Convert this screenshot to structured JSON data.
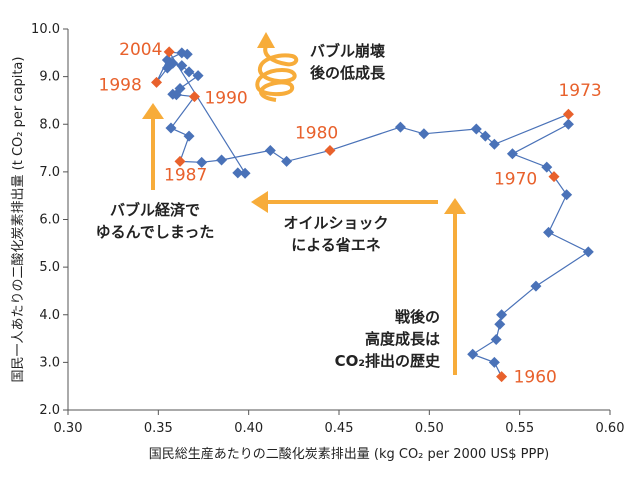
{
  "chart_data": {
    "type": "scatter",
    "xlabel": "国民総生産あたりの二酸化炭素排出量 (kg CO₂ per 2000 US$ PPP)",
    "ylabel": "国民一人あたりの二酸化炭素排出量 (t CO₂ per capita)",
    "xlim": [
      0.3,
      0.6
    ],
    "ylim": [
      2.0,
      10.0
    ],
    "x_ticks": [
      "0.30",
      "0.35",
      "0.40",
      "0.45",
      "0.50",
      "0.55",
      "0.60"
    ],
    "y_ticks": [
      "2.0",
      "3.0",
      "4.0",
      "5.0",
      "6.0",
      "7.0",
      "8.0",
      "9.0",
      "10.0"
    ],
    "grid": false,
    "colors": {
      "points": "#4a72b8",
      "highlight": "#e8612c",
      "arrows": "#f7ac3a"
    },
    "series": [
      {
        "points": [
          {
            "x": 0.54,
            "y": 2.7
          },
          {
            "x": 0.536,
            "y": 3.0
          },
          {
            "x": 0.524,
            "y": 3.17
          },
          {
            "x": 0.537,
            "y": 3.48
          },
          {
            "x": 0.539,
            "y": 3.8
          },
          {
            "x": 0.54,
            "y": 4.0
          },
          {
            "x": 0.559,
            "y": 4.6
          },
          {
            "x": 0.588,
            "y": 5.32
          },
          {
            "x": 0.566,
            "y": 5.73
          },
          {
            "x": 0.576,
            "y": 6.52
          },
          {
            "x": 0.569,
            "y": 6.9
          },
          {
            "x": 0.565,
            "y": 7.1
          },
          {
            "x": 0.546,
            "y": 7.38
          },
          {
            "x": 0.577,
            "y": 8.0
          },
          {
            "x": 0.577,
            "y": 8.21
          },
          {
            "x": 0.536,
            "y": 7.58
          },
          {
            "x": 0.531,
            "y": 7.75
          },
          {
            "x": 0.526,
            "y": 7.9
          },
          {
            "x": 0.497,
            "y": 7.8
          },
          {
            "x": 0.484,
            "y": 7.94
          },
          {
            "x": 0.445,
            "y": 7.45
          },
          {
            "x": 0.421,
            "y": 7.22
          },
          {
            "x": 0.412,
            "y": 7.45
          },
          {
            "x": 0.385,
            "y": 7.25
          },
          {
            "x": 0.374,
            "y": 7.2
          },
          {
            "x": 0.362,
            "y": 7.22
          },
          {
            "x": 0.367,
            "y": 7.75
          },
          {
            "x": 0.357,
            "y": 7.92
          },
          {
            "x": 0.37,
            "y": 8.58
          },
          {
            "x": 0.36,
            "y": 8.62
          },
          {
            "x": 0.358,
            "y": 8.63
          },
          {
            "x": 0.362,
            "y": 8.75
          },
          {
            "x": 0.372,
            "y": 9.02
          },
          {
            "x": 0.367,
            "y": 9.1
          },
          {
            "x": 0.363,
            "y": 9.23
          },
          {
            "x": 0.358,
            "y": 9.28
          },
          {
            "x": 0.355,
            "y": 9.18
          },
          {
            "x": 0.349,
            "y": 8.88
          },
          {
            "x": 0.355,
            "y": 9.35
          },
          {
            "x": 0.363,
            "y": 9.5
          },
          {
            "x": 0.366,
            "y": 9.47
          },
          {
            "x": 0.356,
            "y": 9.52
          },
          {
            "x": 0.398,
            "y": 6.97
          },
          {
            "x": 0.394,
            "y": 6.98
          }
        ]
      }
    ],
    "highlighted_points": [
      {
        "year": "1960",
        "x": 0.54,
        "y": 2.7
      },
      {
        "year": "1970",
        "x": 0.569,
        "y": 6.9
      },
      {
        "year": "1973",
        "x": 0.577,
        "y": 8.21
      },
      {
        "year": "1980",
        "x": 0.445,
        "y": 7.45
      },
      {
        "year": "1987",
        "x": 0.362,
        "y": 7.22
      },
      {
        "year": "1990",
        "x": 0.37,
        "y": 8.58
      },
      {
        "year": "1998",
        "x": 0.349,
        "y": 8.88
      },
      {
        "year": "2004",
        "x": 0.356,
        "y": 9.52
      }
    ],
    "annotations": {
      "bubble_collapse": [
        "バブル崩壊",
        "後の低成長"
      ],
      "bubble_economy": [
        "バブル経済で",
        "ゆるんでしまった"
      ],
      "oil_shock": [
        "オイルショック",
        "による省エネ"
      ],
      "postwar": [
        "戦後の",
        "高度成長は",
        "CO₂排出の歴史"
      ]
    }
  }
}
